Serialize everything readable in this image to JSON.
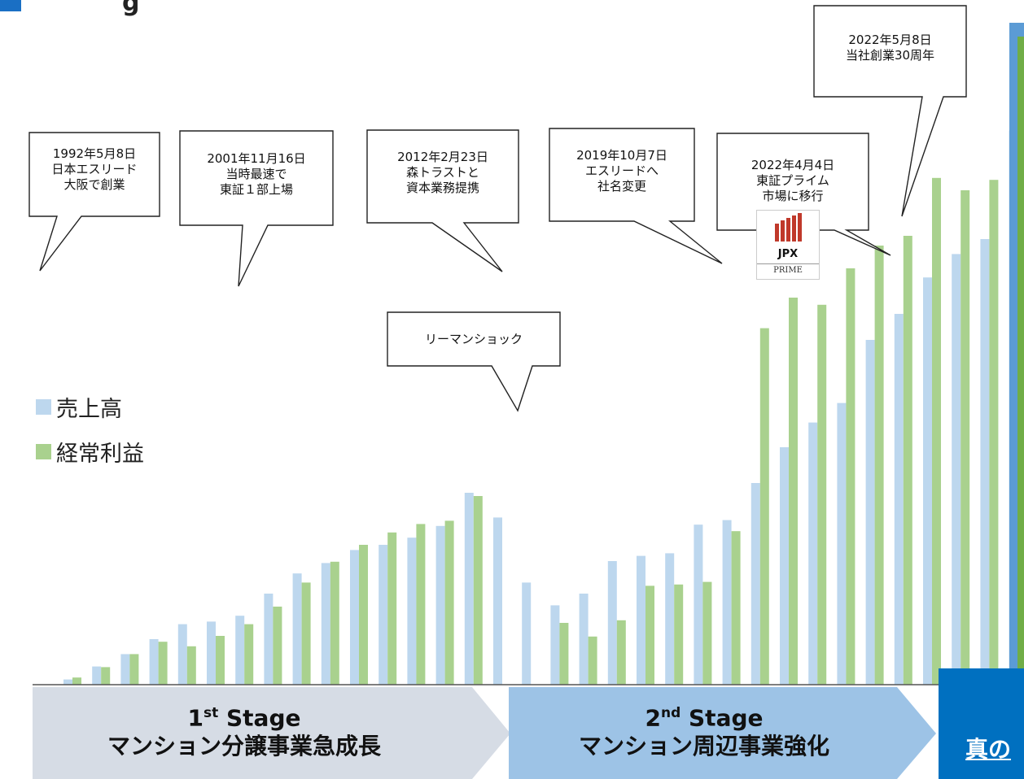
{
  "header": {
    "title_fragment": "g"
  },
  "legend": [
    {
      "label": "売上高",
      "color": "#bdd7ee"
    },
    {
      "label": "経常利益",
      "color": "#a9d18e"
    }
  ],
  "callouts": [
    {
      "text": "1992年5月8日\n日本エスリード\n大阪で創業"
    },
    {
      "text": "2001年11月16日\n当時最速で\n東証１部上場"
    },
    {
      "text": "2012年2月23日\n森トラストと\n資本業務提携"
    },
    {
      "text": "2019年10月7日\nエスリードへ\n社名変更"
    },
    {
      "text": "2022年4月4日\n東証プライム\n市場に移行"
    },
    {
      "text": "2022年5月8日\n当社創業30周年"
    },
    {
      "text": "リーマンショック"
    }
  ],
  "logo": {
    "top": "JPX",
    "bottom": "PRIME"
  },
  "stages": [
    {
      "ordinal": "1",
      "suffix": "st",
      "word": "Stage",
      "subtitle": "マンション分譲事業急成長",
      "color": "#d6dce5"
    },
    {
      "ordinal": "2",
      "suffix": "nd",
      "word": "Stage",
      "subtitle": "マンション周辺事業強化",
      "color": "#9dc3e6"
    },
    {
      "partial": "真の",
      "color": "#0070c0"
    }
  ],
  "chart_data": {
    "type": "bar",
    "series": [
      {
        "name": "売上高",
        "values": [
          8,
          28,
          47,
          70,
          93,
          97,
          106,
          140,
          171,
          187,
          207,
          215,
          226,
          244,
          295,
          257,
          157,
          122,
          140,
          190,
          198,
          202,
          246,
          253,
          310,
          365,
          403,
          433,
          530,
          570,
          626,
          662,
          685,
          852,
          937
        ]
      },
      {
        "name": "経常利益",
        "values": [
          11,
          27,
          47,
          66,
          59,
          75,
          93,
          120,
          157,
          189,
          215,
          234,
          247,
          252,
          290,
          0,
          0,
          95,
          74,
          99,
          152,
          154,
          158,
          236,
          548,
          595,
          584,
          640,
          675,
          690,
          779,
          760,
          776,
          839,
          979
        ]
      }
    ],
    "ylim": [
      0,
      1000
    ]
  }
}
